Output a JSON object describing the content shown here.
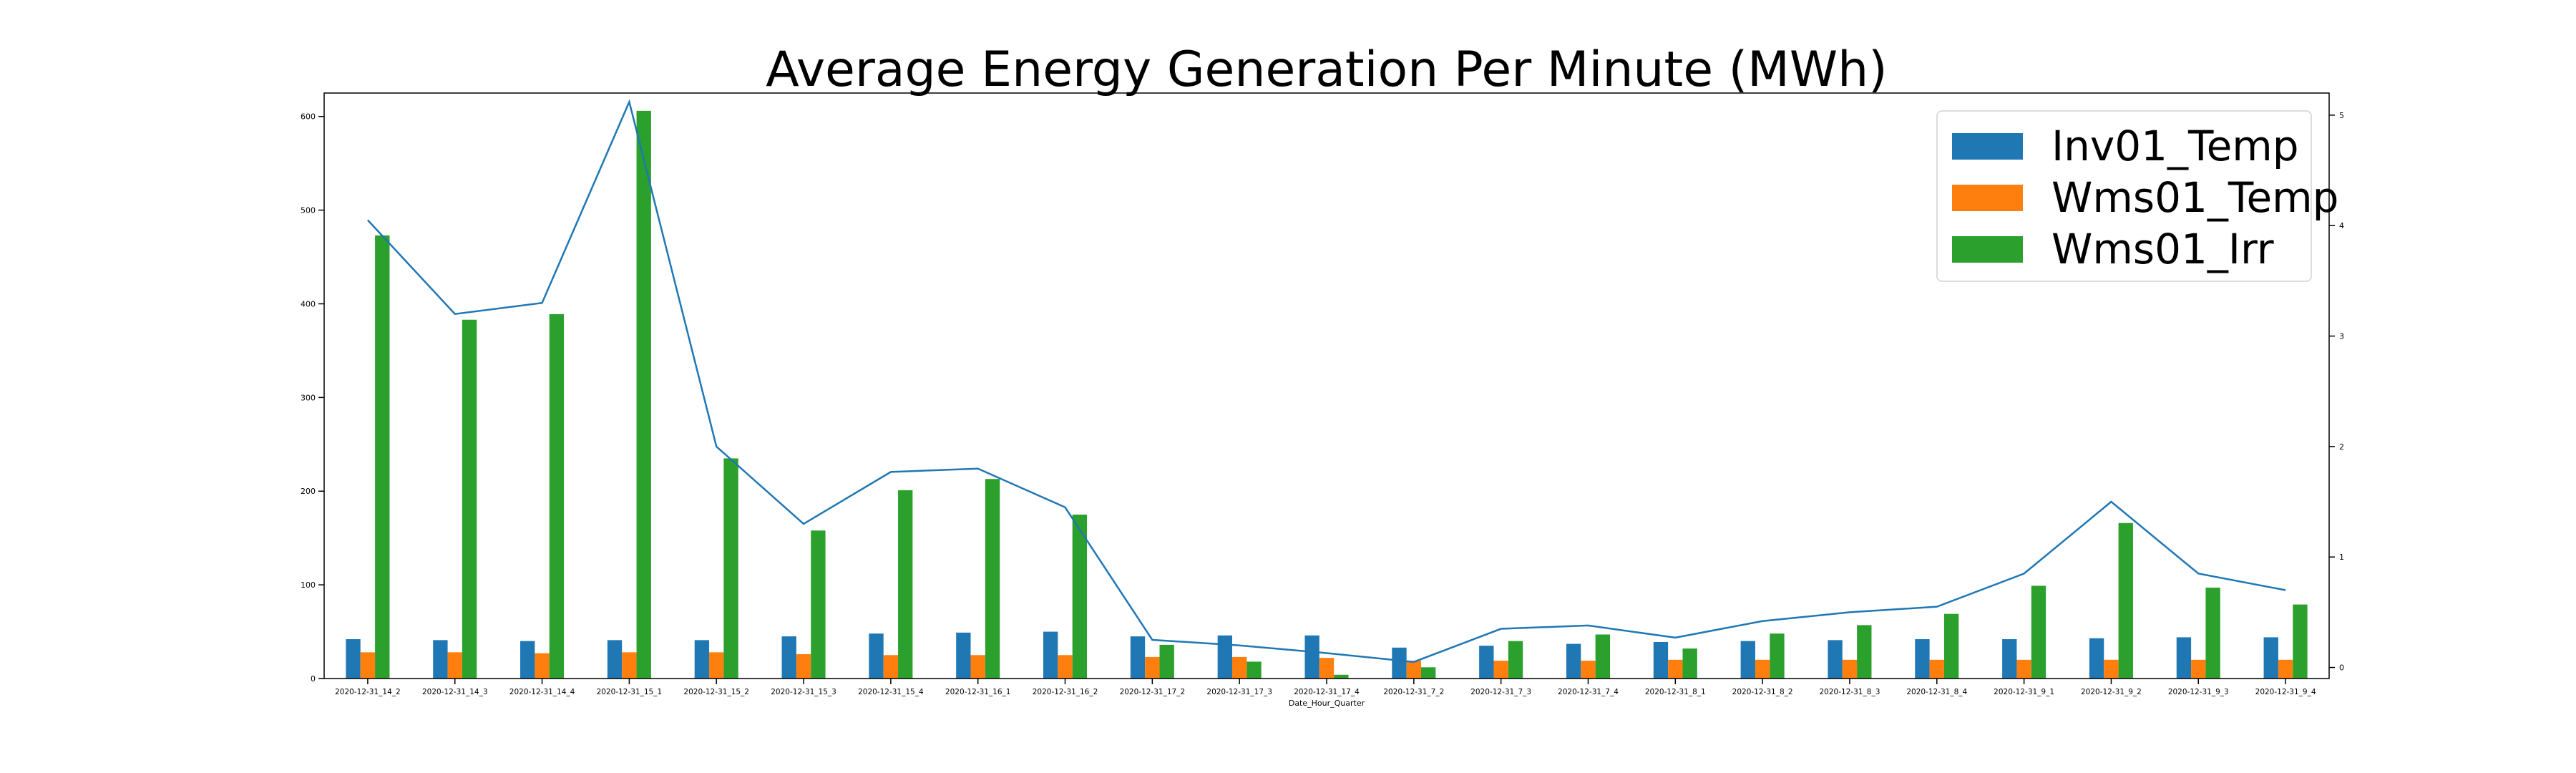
{
  "chart_data": {
    "type": "bar",
    "title": "Average Energy Generation Per Minute (MWh)",
    "xlabel": "Date_Hour_Quarter",
    "ylabel": "",
    "ylim": [
      0,
      625
    ],
    "yticks": [
      0,
      100,
      200,
      300,
      400,
      500,
      600
    ],
    "categories": [
      "2020-12-31_14_2",
      "2020-12-31_14_3",
      "2020-12-31_14_4",
      "2020-12-31_15_1",
      "2020-12-31_15_2",
      "2020-12-31_15_3",
      "2020-12-31_15_4",
      "2020-12-31_16_1",
      "2020-12-31_16_2",
      "2020-12-31_17_2",
      "2020-12-31_17_3",
      "2020-12-31_17_4",
      "2020-12-31_7_2",
      "2020-12-31_7_3",
      "2020-12-31_7_4",
      "2020-12-31_8_1",
      "2020-12-31_8_2",
      "2020-12-31_8_3",
      "2020-12-31_8_4",
      "2020-12-31_9_1",
      "2020-12-31_9_2",
      "2020-12-31_9_3",
      "2020-12-31_9_4"
    ],
    "series": [
      {
        "name": "Inv01_Temp",
        "color": "#1f77b4",
        "values": [
          42,
          41,
          40,
          41,
          41,
          45,
          48,
          49,
          50,
          45,
          46,
          46,
          33,
          35,
          37,
          39,
          40,
          41,
          42,
          42,
          43,
          44,
          44
        ]
      },
      {
        "name": "Wms01_Temp",
        "color": "#ff7f0e",
        "values": [
          28,
          28,
          27,
          28,
          28,
          26,
          25,
          25,
          25,
          23,
          23,
          22,
          19,
          19,
          19,
          20,
          20,
          20,
          20,
          20,
          20,
          20,
          20
        ]
      },
      {
        "name": "Wms01_Irr",
        "color": "#2ca02c",
        "values": [
          473,
          383,
          389,
          606,
          235,
          158,
          201,
          213,
          175,
          36,
          18,
          4,
          12,
          40,
          47,
          32,
          48,
          57,
          69,
          99,
          166,
          97,
          79
        ]
      }
    ],
    "secondary_axis": {
      "ylim": [
        -0.1,
        5.2
      ],
      "yticks": [
        0,
        1,
        2,
        3,
        4,
        5
      ],
      "line_color": "#1f77b4",
      "values": [
        4.05,
        3.2,
        3.3,
        5.12,
        2.0,
        1.3,
        1.77,
        1.8,
        1.45,
        0.25,
        0.2,
        0.13,
        0.05,
        0.35,
        0.38,
        0.27,
        0.42,
        0.5,
        0.55,
        0.85,
        1.5,
        0.85,
        0.7
      ]
    },
    "grid": false,
    "legend_position": "top-right"
  }
}
